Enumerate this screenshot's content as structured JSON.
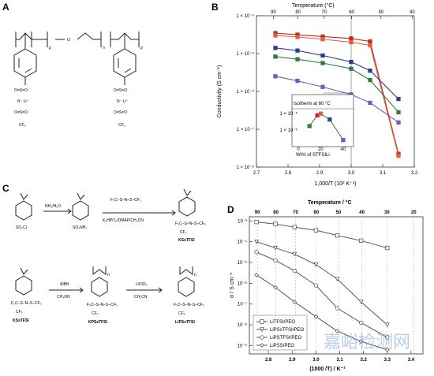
{
  "panels": {
    "A": {
      "letter": "A",
      "chem": {
        "subs": [
          "p",
          "n",
          "p"
        ],
        "o": "O",
        "sulfonyl": "O=S=O",
        "n_li": "N⁻ Li⁺",
        "cf3": "CF₃"
      }
    },
    "B": {
      "letter": "B"
    },
    "C": {
      "letter": "C",
      "reagents": [
        "NH₃/H₂O",
        "F₃C–S–N–S–CF₃",
        "K₂HPO₄/DMAP/CH₃CN",
        "AIBN",
        "CH₃OH",
        "LiClO₄",
        "CH₃CN"
      ],
      "fragments": {
        "so2cl": "SO₂Cl",
        "so2nh2": "SO₂NH₂",
        "cf3": "CF₃",
        "n": "n"
      },
      "names": [
        "KSsTFSI",
        "KSsTFSI",
        "KPSsTFSI",
        "LiPSsTFSI"
      ]
    },
    "D": {
      "letter": "D"
    }
  },
  "chart_data": [
    {
      "type": "line",
      "panel": "B",
      "title": "",
      "xlabel": "1,000/T (10³ K⁻¹)",
      "ylabel": "Conductivity (S cm⁻¹)",
      "top_axis_label": "Temperature (°C)",
      "x_ticks": [
        "2.7",
        "2.8",
        "2.9",
        "3.0",
        "3.1",
        "3.2"
      ],
      "top_ticks": [
        "90",
        "80",
        "70",
        "60",
        "50",
        "40"
      ],
      "y_ticks": [
        "1 × 10⁻⁴",
        "1 × 10⁻⁵",
        "1 × 10⁻⁶",
        "1 × 10⁻⁷",
        "1 × 10⁻⁸"
      ],
      "xlim": [
        2.7,
        3.2
      ],
      "ylim_log10": [
        -8,
        -4
      ],
      "series": [
        {
          "color": "#c0262b",
          "x": [
            2.76,
            2.83,
            2.91,
            3.0,
            3.06,
            3.15
          ],
          "y": [
            -4.46,
            -4.5,
            -4.55,
            -4.6,
            -4.68,
            -7.65
          ]
        },
        {
          "color": "#e0623a",
          "x": [
            2.76,
            2.83,
            2.91,
            3.0,
            3.06,
            3.15
          ],
          "y": [
            -4.52,
            -4.56,
            -4.62,
            -4.7,
            -4.78,
            -7.7
          ]
        },
        {
          "color": "#2a3e8f",
          "x": [
            2.76,
            2.83,
            2.91,
            3.0,
            3.06,
            3.15
          ],
          "y": [
            -4.85,
            -4.92,
            -5.05,
            -5.22,
            -5.45,
            -6.2
          ]
        },
        {
          "color": "#2e7d3a",
          "x": [
            2.76,
            2.83,
            2.91,
            3.0,
            3.06,
            3.15
          ],
          "y": [
            -5.08,
            -5.15,
            -5.25,
            -5.4,
            -5.7,
            -6.55
          ]
        },
        {
          "color": "#6a5fc2",
          "x": [
            2.76,
            2.83,
            2.91,
            3.0,
            3.06,
            3.15
          ],
          "y": [
            -5.6,
            -5.72,
            -5.88,
            -6.08,
            -6.3,
            -6.82
          ]
        }
      ],
      "inset": {
        "title": "Isotherm at 60 °C",
        "xlabel": "Wt% of STFSILi",
        "x_ticks": [
          "0",
          "20",
          "40"
        ],
        "y_ticks": [
          "1 × 10⁻⁵",
          "1 × 10⁻⁶"
        ],
        "x": [
          10,
          17,
          20,
          28,
          40
        ],
        "y": [
          -5.75,
          -5.1,
          -5.0,
          -5.35,
          -6.6
        ],
        "colors": [
          "#2e7d3a",
          "#c0262b",
          "#e0623a",
          "#2a3e8f",
          "#6a5fc2"
        ]
      }
    },
    {
      "type": "line",
      "panel": "D",
      "title": "",
      "xlabel": "(1000 /T) / K⁻¹",
      "ylabel": "σ / S cm⁻¹",
      "top_axis_label": "Temperature / °C",
      "x_ticks": [
        "2.8",
        "2.9",
        "3.0",
        "3.1",
        "3.2",
        "3.3",
        "3.4"
      ],
      "top_ticks": [
        "90",
        "80",
        "70",
        "60",
        "50",
        "40",
        "30",
        "20"
      ],
      "y_ticks": [
        "10⁻³",
        "10⁻⁴",
        "10⁻⁵",
        "10⁻⁶",
        "10⁻⁷",
        "10⁻⁸",
        "10⁻⁹"
      ],
      "xlim": [
        2.72,
        3.45
      ],
      "ylim_log10": [
        -9.4,
        -2.8
      ],
      "series": [
        {
          "name": "LiTFSI/PEO",
          "marker": "square",
          "x": [
            2.75,
            2.83,
            2.91,
            3.0,
            3.09,
            3.19,
            3.3
          ],
          "y": [
            -3.05,
            -3.15,
            -3.3,
            -3.45,
            -3.7,
            -3.95,
            -4.3
          ]
        },
        {
          "name": "LiPSsTFSI/PEO",
          "marker": "triangle",
          "x": [
            2.75,
            2.83,
            2.91,
            3.0,
            3.09,
            3.19,
            3.3
          ],
          "y": [
            -4.0,
            -4.3,
            -4.6,
            -5.1,
            -5.8,
            -6.9,
            -8.0
          ]
        },
        {
          "name": "LiPSTFSI/PEO",
          "marker": "circle",
          "x": [
            2.75,
            2.83,
            2.91,
            3.0,
            3.09,
            3.19,
            3.3
          ],
          "y": [
            -4.5,
            -4.9,
            -5.4,
            -6.1,
            -7.2,
            -7.9,
            -8.6
          ]
        },
        {
          "name": "LiPSS/PEO",
          "marker": "diamond",
          "x": [
            2.75,
            2.83,
            2.91,
            3.0,
            3.09,
            3.19,
            3.3
          ],
          "y": [
            -5.6,
            -6.2,
            -6.9,
            -7.6,
            -8.3,
            -8.8,
            -9.2
          ]
        }
      ]
    }
  ],
  "watermark": "嘉峪检测网"
}
